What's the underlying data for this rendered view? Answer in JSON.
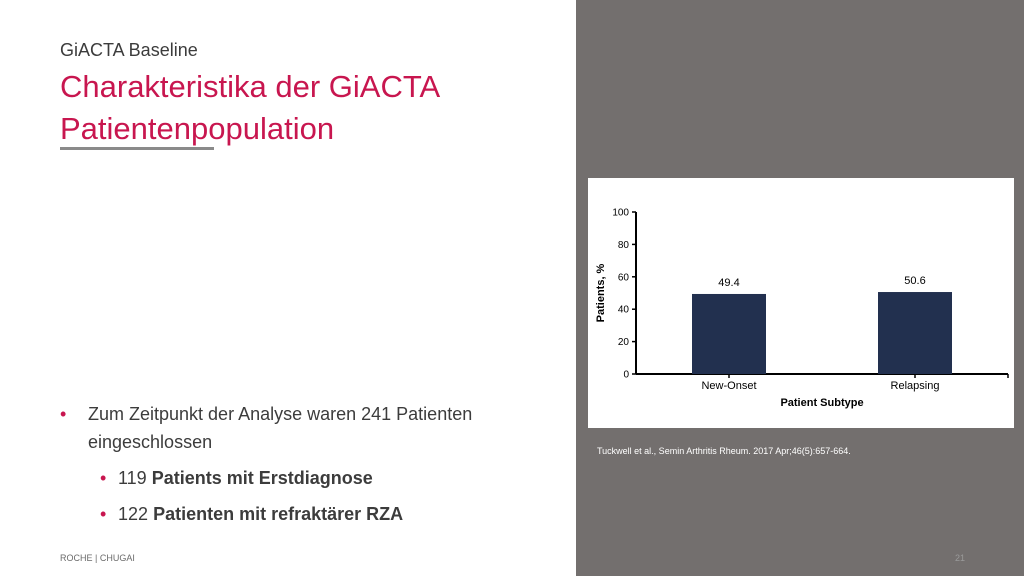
{
  "slide": {
    "subtitle": "GiACTA Baseline",
    "title_line1": "Charakteristika der GiACTA",
    "title_line2": "Patientenpopulation",
    "bullet_main": "Zum Zeitpunkt der Analyse waren 241 Patienten eingeschlossen",
    "bullet_sub1_num": "119",
    "bullet_sub1_text": "Patients mit Erstdiagnose",
    "bullet_sub2_num": "122",
    "bullet_sub2_text": "Patienten mit refraktärer RZA",
    "bullet_glyph": "•",
    "footer_left": "ROCHE | CHUGAI",
    "footer_page": "21",
    "citation": "Tuckwell et al., Semin Arthritis Rheum. 2017 Apr;46(5):657-664.",
    "accent_color": "#c8164f",
    "panel_color": "#736f6e",
    "bar_color": "#22304f"
  },
  "chart_data": {
    "type": "bar",
    "categories": [
      "New-Onset",
      "Relapsing"
    ],
    "values": [
      49.4,
      50.6
    ],
    "value_labels": [
      "49.4",
      "50.6"
    ],
    "xlabel": "Patient Subtype",
    "ylabel": "Patients, %",
    "ylim": [
      0,
      100
    ],
    "yticks": [
      "0",
      "20",
      "40",
      "60",
      "80",
      "100"
    ],
    "grid": false
  }
}
